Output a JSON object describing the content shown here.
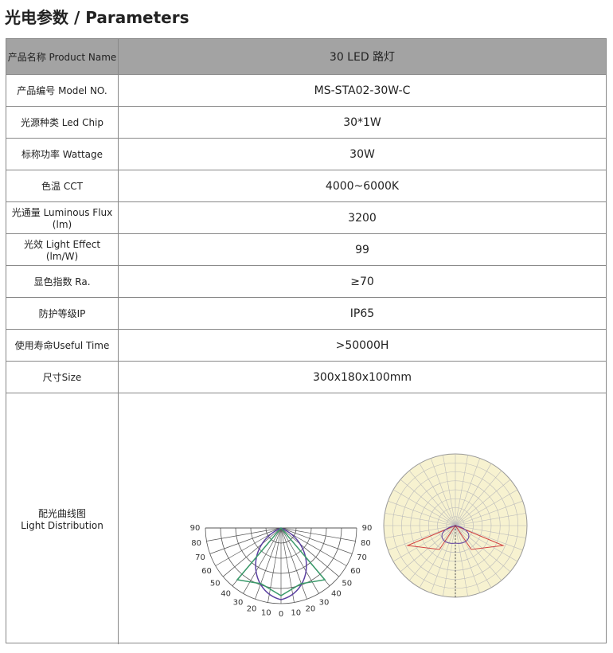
{
  "title": "光电参数 / Parameters",
  "table": {
    "rows": [
      [
        "产品名称 Product Name",
        "30 LED 路灯"
      ],
      [
        "产品编号 Model NO.",
        "MS-STA02-30W-C"
      ],
      [
        "光源种类 Led Chip",
        "30*1W"
      ],
      [
        "标称功率 Wattage",
        "30W"
      ],
      [
        "色温 CCT",
        "4000~6000K"
      ],
      [
        "光通量 Luminous Flux  (lm)",
        "3200"
      ],
      [
        "光效 Light Effect    (lm/W)",
        "99"
      ],
      [
        "显色指数 Ra.",
        "≥70"
      ],
      [
        "防护等级IP",
        "IP65"
      ],
      [
        "使用寿命Useful Time",
        ">50000H"
      ],
      [
        "尺寸Size",
        "300x180x100mm"
      ]
    ]
  },
  "distribution": {
    "label": [
      "配光曲线图",
      "Light Distribution"
    ],
    "angles": [
      "90",
      "80",
      "70",
      "60",
      "50",
      "40",
      "30",
      "20",
      "10",
      "0",
      "10",
      "20",
      "30",
      "40",
      "50",
      "60",
      "70",
      "80",
      "90"
    ]
  }
}
